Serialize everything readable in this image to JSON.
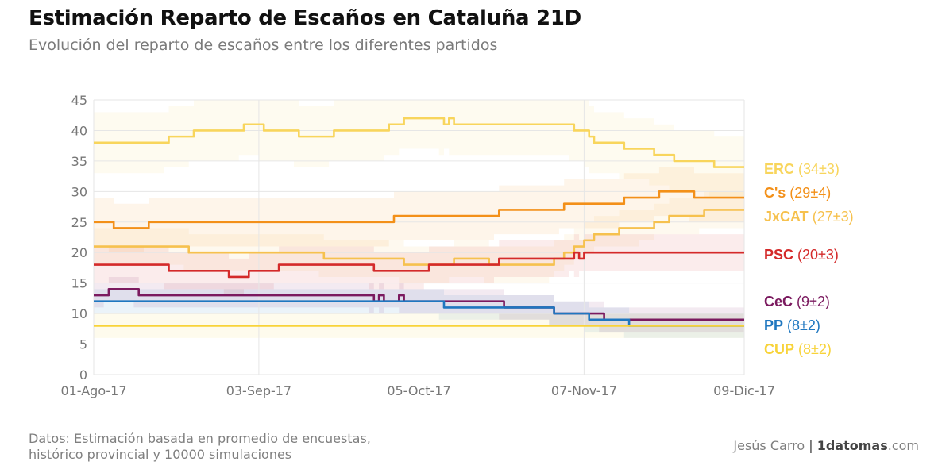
{
  "header": {
    "title": "Estimación Reparto de Escaños en Cataluña 21D",
    "subtitle": "Evolución del reparto de escaños entre los diferentes partidos"
  },
  "footer": {
    "source_line1": "Datos: Estimación basada en promedio de encuestas,",
    "source_line2": "histórico provincial y 10000 simulaciones",
    "author": "Jesús Carro",
    "separator": "|",
    "brand_bold": "1datomas",
    "brand_tld": ".com"
  },
  "chart_data": {
    "type": "line",
    "title": "Estimación Reparto de Escaños en Cataluña 21D",
    "subtitle": "Evolución del reparto de escaños entre los diferentes partidos",
    "x_type": "date",
    "xlim": [
      "2017-08-01",
      "2017-12-09"
    ],
    "ylim": [
      0,
      45
    ],
    "y_ticks": [
      0,
      5,
      10,
      15,
      20,
      25,
      30,
      35,
      40,
      45
    ],
    "x_ticks": [
      {
        "date": "2017-08-01",
        "label": "01-Ago-17"
      },
      {
        "date": "2017-09-03",
        "label": "03-Sep-17"
      },
      {
        "date": "2017-10-05",
        "label": "05-Oct-17"
      },
      {
        "date": "2017-11-07",
        "label": "07-Nov-17"
      },
      {
        "date": "2017-12-09",
        "label": "09-Dic-17"
      }
    ],
    "grid": true,
    "legend": "right, labels at line ends",
    "series": [
      {
        "name": "ERC",
        "label_suffix": "(34±3)",
        "color": "#f8d55c",
        "band": 5,
        "points": [
          [
            "2017-08-01",
            38
          ],
          [
            "2017-08-15",
            38
          ],
          [
            "2017-08-16",
            39
          ],
          [
            "2017-08-20",
            39
          ],
          [
            "2017-08-21",
            40
          ],
          [
            "2017-08-30",
            40
          ],
          [
            "2017-08-31",
            41
          ],
          [
            "2017-09-03",
            41
          ],
          [
            "2017-09-04",
            40
          ],
          [
            "2017-09-10",
            40
          ],
          [
            "2017-09-11",
            39
          ],
          [
            "2017-09-17",
            39
          ],
          [
            "2017-09-18",
            40
          ],
          [
            "2017-09-28",
            40
          ],
          [
            "2017-09-29",
            41
          ],
          [
            "2017-10-01",
            41
          ],
          [
            "2017-10-02",
            42
          ],
          [
            "2017-10-09",
            42
          ],
          [
            "2017-10-10",
            41
          ],
          [
            "2017-10-11",
            42
          ],
          [
            "2017-10-12",
            41
          ],
          [
            "2017-11-04",
            41
          ],
          [
            "2017-11-05",
            40
          ],
          [
            "2017-11-07",
            40
          ],
          [
            "2017-11-08",
            39
          ],
          [
            "2017-11-09",
            38
          ],
          [
            "2017-11-14",
            38
          ],
          [
            "2017-11-15",
            37
          ],
          [
            "2017-11-20",
            37
          ],
          [
            "2017-11-21",
            36
          ],
          [
            "2017-11-24",
            36
          ],
          [
            "2017-11-25",
            35
          ],
          [
            "2017-12-02",
            35
          ],
          [
            "2017-12-03",
            34
          ],
          [
            "2017-12-09",
            34
          ]
        ]
      },
      {
        "name": "C's",
        "label_suffix": "(29±4)",
        "color": "#f39019",
        "band": 4,
        "points": [
          [
            "2017-08-01",
            25
          ],
          [
            "2017-08-04",
            25
          ],
          [
            "2017-08-05",
            24
          ],
          [
            "2017-08-11",
            24
          ],
          [
            "2017-08-12",
            25
          ],
          [
            "2017-09-29",
            25
          ],
          [
            "2017-09-30",
            26
          ],
          [
            "2017-10-20",
            26
          ],
          [
            "2017-10-21",
            27
          ],
          [
            "2017-11-02",
            27
          ],
          [
            "2017-11-03",
            28
          ],
          [
            "2017-11-14",
            28
          ],
          [
            "2017-11-15",
            29
          ],
          [
            "2017-11-21",
            29
          ],
          [
            "2017-11-22",
            30
          ],
          [
            "2017-11-28",
            30
          ],
          [
            "2017-11-29",
            29
          ],
          [
            "2017-12-09",
            29
          ]
        ]
      },
      {
        "name": "JxCAT",
        "label_suffix": "(27±3)",
        "color": "#f6c14e",
        "band": 3,
        "points": [
          [
            "2017-08-01",
            21
          ],
          [
            "2017-08-19",
            21
          ],
          [
            "2017-08-20",
            20
          ],
          [
            "2017-09-15",
            20
          ],
          [
            "2017-09-16",
            19
          ],
          [
            "2017-10-01",
            19
          ],
          [
            "2017-10-02",
            18
          ],
          [
            "2017-10-11",
            18
          ],
          [
            "2017-10-12",
            19
          ],
          [
            "2017-10-18",
            19
          ],
          [
            "2017-10-19",
            18
          ],
          [
            "2017-10-31",
            18
          ],
          [
            "2017-11-01",
            19
          ],
          [
            "2017-11-03",
            20
          ],
          [
            "2017-11-05",
            21
          ],
          [
            "2017-11-07",
            22
          ],
          [
            "2017-11-09",
            23
          ],
          [
            "2017-11-14",
            24
          ],
          [
            "2017-11-18",
            24
          ],
          [
            "2017-11-21",
            25
          ],
          [
            "2017-11-24",
            26
          ],
          [
            "2017-11-30",
            26
          ],
          [
            "2017-12-01",
            27
          ],
          [
            "2017-12-09",
            27
          ]
        ]
      },
      {
        "name": "PSC",
        "label_suffix": "(20±3)",
        "color": "#d42a2a",
        "band": 3,
        "points": [
          [
            "2017-08-01",
            18
          ],
          [
            "2017-08-15",
            18
          ],
          [
            "2017-08-16",
            17
          ],
          [
            "2017-08-27",
            17
          ],
          [
            "2017-08-28",
            16
          ],
          [
            "2017-08-31",
            16
          ],
          [
            "2017-09-01",
            17
          ],
          [
            "2017-09-06",
            17
          ],
          [
            "2017-09-07",
            18
          ],
          [
            "2017-09-25",
            18
          ],
          [
            "2017-09-26",
            17
          ],
          [
            "2017-10-06",
            17
          ],
          [
            "2017-10-07",
            18
          ],
          [
            "2017-10-20",
            18
          ],
          [
            "2017-10-21",
            19
          ],
          [
            "2017-11-04",
            19
          ],
          [
            "2017-11-05",
            20
          ],
          [
            "2017-11-06",
            19
          ],
          [
            "2017-11-07",
            20
          ],
          [
            "2017-12-09",
            20
          ]
        ]
      },
      {
        "name": "CeC",
        "label_suffix": "(9±2)",
        "color": "#7b1a5f",
        "band": 2,
        "points": [
          [
            "2017-08-01",
            13
          ],
          [
            "2017-08-03",
            13
          ],
          [
            "2017-08-04",
            14
          ],
          [
            "2017-08-09",
            14
          ],
          [
            "2017-08-10",
            13
          ],
          [
            "2017-09-25",
            13
          ],
          [
            "2017-09-26",
            12
          ],
          [
            "2017-09-27",
            13
          ],
          [
            "2017-09-28",
            12
          ],
          [
            "2017-10-01",
            13
          ],
          [
            "2017-10-02",
            12
          ],
          [
            "2017-10-21",
            12
          ],
          [
            "2017-10-22",
            11
          ],
          [
            "2017-10-31",
            11
          ],
          [
            "2017-11-01",
            10
          ],
          [
            "2017-11-10",
            10
          ],
          [
            "2017-11-11",
            9
          ],
          [
            "2017-12-09",
            9
          ]
        ]
      },
      {
        "name": "PP",
        "label_suffix": "(8±2)",
        "color": "#1f77c0",
        "band": 2,
        "points": [
          [
            "2017-08-01",
            12
          ],
          [
            "2017-10-09",
            12
          ],
          [
            "2017-10-10",
            11
          ],
          [
            "2017-10-31",
            11
          ],
          [
            "2017-11-01",
            10
          ],
          [
            "2017-11-07",
            10
          ],
          [
            "2017-11-08",
            9
          ],
          [
            "2017-11-15",
            9
          ],
          [
            "2017-11-16",
            8
          ],
          [
            "2017-12-09",
            8
          ]
        ]
      },
      {
        "name": "CUP",
        "label_suffix": "(8±2)",
        "color": "#f8d33a",
        "band": 2,
        "points": [
          [
            "2017-08-01",
            8
          ],
          [
            "2017-12-09",
            8
          ]
        ]
      }
    ]
  }
}
